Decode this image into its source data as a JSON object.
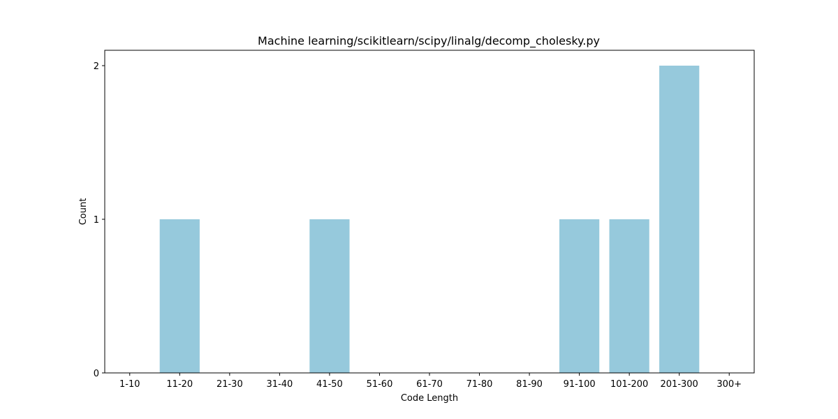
{
  "chart_data": {
    "type": "bar",
    "title": "Machine learning/scikitlearn/scipy/linalg/decomp_cholesky.py",
    "xlabel": "Code Length",
    "ylabel": "Count",
    "categories": [
      "1-10",
      "11-20",
      "21-30",
      "31-40",
      "41-50",
      "51-60",
      "61-70",
      "71-80",
      "81-90",
      "91-100",
      "101-200",
      "201-300",
      "300+"
    ],
    "values": [
      0,
      1,
      0,
      0,
      1,
      0,
      0,
      0,
      0,
      1,
      1,
      2,
      0
    ],
    "ylim": [
      0,
      2.1
    ],
    "yticks": [
      0,
      1,
      2
    ],
    "bar_color": "#96c9dc",
    "grid": false,
    "legend": false
  }
}
